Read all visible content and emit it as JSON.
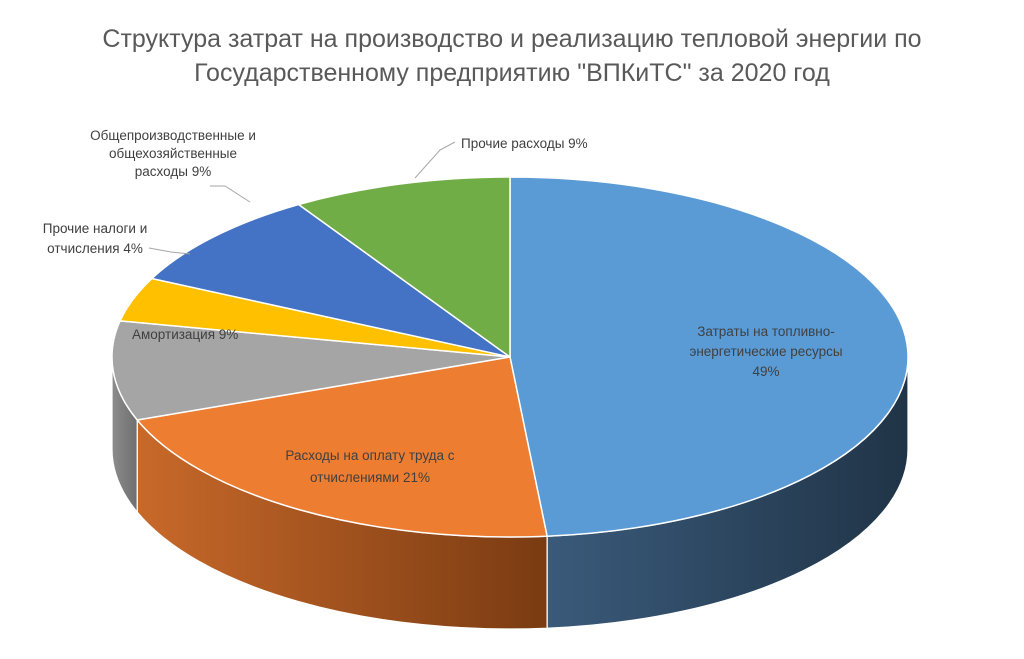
{
  "title": {
    "line1": "Структура затрат на производство и реализацию тепловой энергии по",
    "line2": "Государственному предприятию \"ВПКиТС\" за 2020 год"
  },
  "chart_data": {
    "type": "pie",
    "title": "Структура затрат на производство и реализацию тепловой энергии по Государственному предприятию \"ВПКиТС\" за 2020 год",
    "legend": "none",
    "style": "3d",
    "slices": [
      {
        "name": "Затраты на топливно-энергетические ресурсы",
        "value": 49,
        "label_lines": [
          "Затраты на топливно-",
          "энергетические  ресурсы",
          "49%"
        ],
        "color": "#5B9BD5",
        "side_dark": "#203447",
        "side_light": "#3a5a7a"
      },
      {
        "name": "Расходы на оплату труда с отчислениями",
        "value": 21,
        "label_lines": [
          "Расходы на оплату труда с",
          "отчислениями 21%"
        ],
        "color": "#ED7D31",
        "side_dark": "#7a3b12",
        "side_light": "#c8692a"
      },
      {
        "name": "Амортизация",
        "value": 9,
        "label_lines": [
          "Амортизация 9%"
        ],
        "color": "#A5A5A5",
        "side_dark": "#6f6f6f",
        "side_light": "#8c8c8c"
      },
      {
        "name": "Прочие налоги и отчисления",
        "value": 4,
        "label_lines": [
          "Прочие налоги и",
          "отчисления 4%"
        ],
        "color": "#FFC000",
        "side_dark": "#9b7400",
        "side_light": "#c99a00"
      },
      {
        "name": "Общепроизводственные и общехозяйственные расходы",
        "value": 9,
        "label_lines": [
          "Общепроизводственные  и",
          "общехозяйственные",
          "расходы 9%"
        ],
        "color": "#4472C4",
        "side_dark": "#263f6d",
        "side_light": "#3a5ea0"
      },
      {
        "name": "Прочие расходы",
        "value": 9,
        "label_lines": [
          "Прочие расходы 9%"
        ],
        "color": "#70AD47",
        "side_dark": "#3e6127",
        "side_light": "#5a8c39"
      }
    ]
  }
}
